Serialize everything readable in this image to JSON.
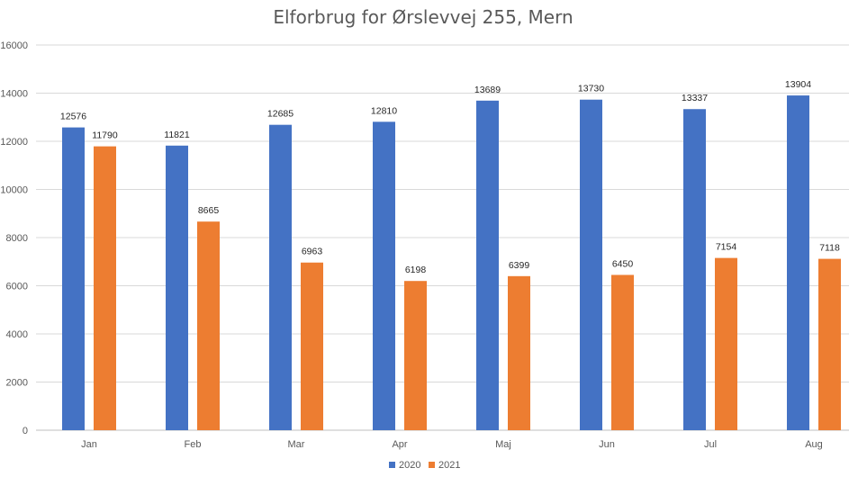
{
  "chart_data": {
    "type": "bar",
    "title": "Elforbrug for Ørslevvej 255, Mern",
    "xlabel": "",
    "ylabel": "",
    "categories": [
      "Jan",
      "Feb",
      "Mar",
      "Apr",
      "Maj",
      "Jun",
      "Jul",
      "Aug"
    ],
    "series": [
      {
        "name": "2020",
        "color": "#4472C4",
        "values": [
          12576,
          11821,
          12685,
          12810,
          13689,
          13730,
          13337,
          13904
        ],
        "labels": [
          "12576",
          "11821",
          "12685",
          "12810",
          "13689",
          "13730",
          "13337",
          "13904"
        ]
      },
      {
        "name": "2021",
        "color": "#ED7D31",
        "values": [
          11790,
          8665,
          6963,
          6198,
          6399,
          6450,
          7154,
          7118
        ],
        "labels": [
          "11790",
          "8665",
          "6963",
          "6198",
          "6399",
          "6450",
          "7154",
          "7118"
        ]
      }
    ],
    "ylim": [
      0,
      16000
    ],
    "yticks": [
      0,
      2000,
      4000,
      6000,
      8000,
      10000,
      12000,
      14000,
      16000
    ],
    "ytick_labels": [
      "0",
      "2000",
      "4000",
      "6000",
      "8000",
      "10000",
      "12000",
      "14000",
      "16000"
    ],
    "grid": true,
    "legend_position": "bottom",
    "data_labels": true
  }
}
